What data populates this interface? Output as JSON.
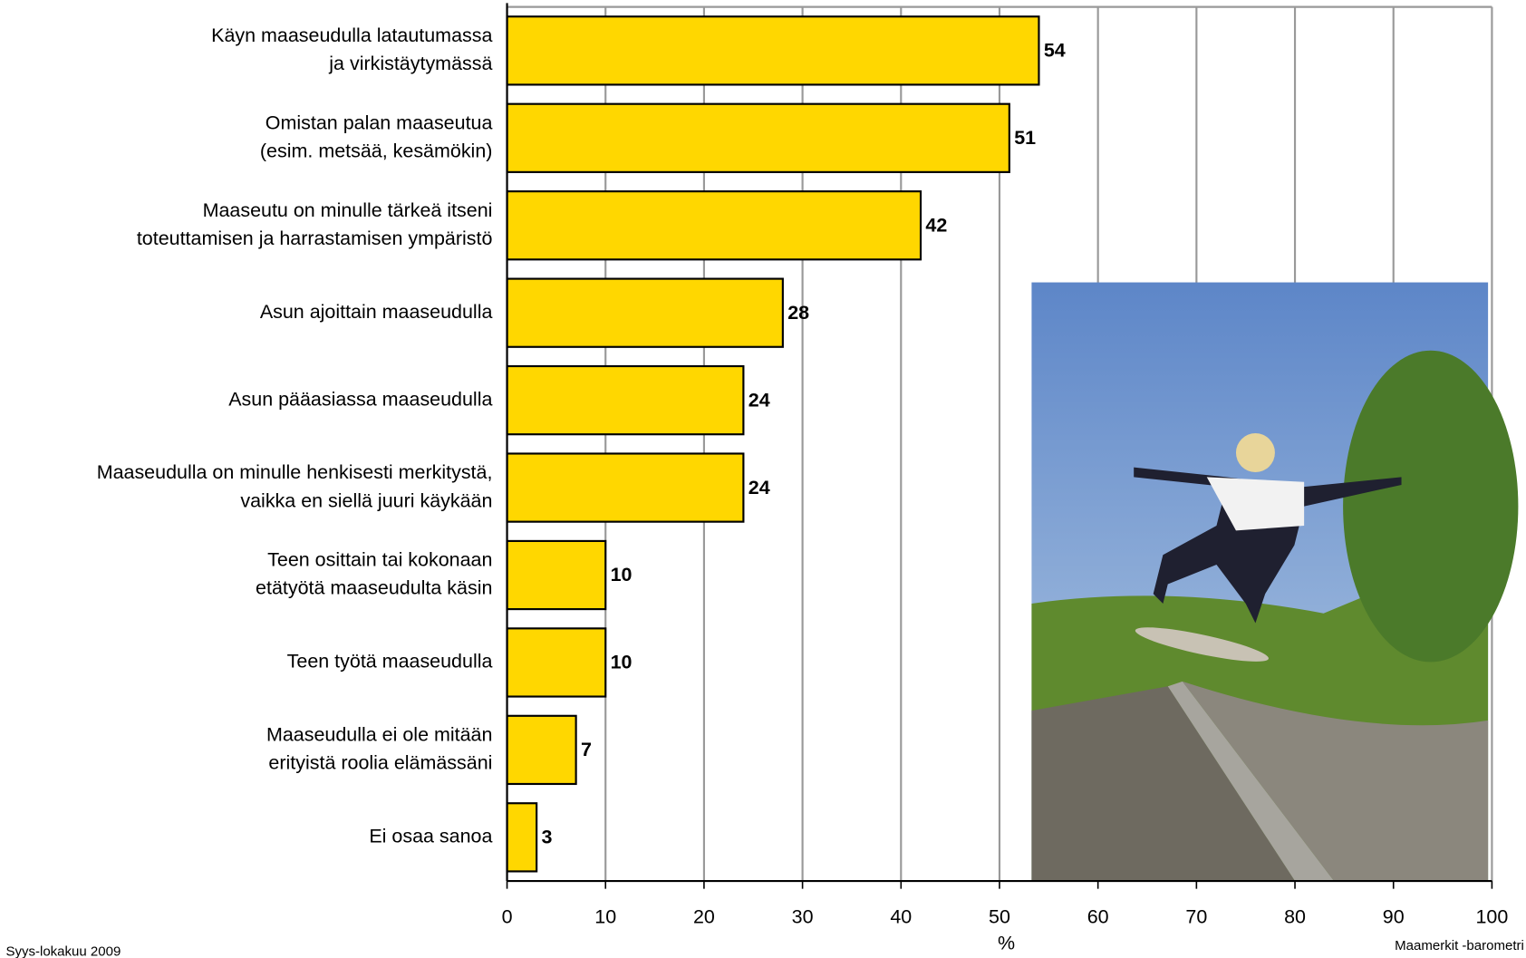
{
  "chart_data": {
    "type": "barh",
    "categories": [
      [
        "Käyn maaseudulla latautumassa",
        "ja virkistäytymässä"
      ],
      [
        "Omistan palan maaseutua",
        "(esim. metsää, kesämökin)"
      ],
      [
        "Maaseutu on minulle tärkeä itseni",
        "toteuttamisen ja harrastamisen ympäristö"
      ],
      [
        "Asun ajoittain maaseudulla"
      ],
      [
        "Asun pääasiassa maaseudulla"
      ],
      [
        "Maaseudulla on minulle henkisesti merkitystä,",
        "vaikka en siellä juuri käykään"
      ],
      [
        "Teen osittain tai kokonaan",
        "etätyötä maaseudulta käsin"
      ],
      [
        "Teen työtä maaseudulla"
      ],
      [
        "Maaseudulla ei ole mitään",
        "erityistä roolia elämässäni"
      ],
      [
        "Ei osaa sanoa"
      ]
    ],
    "values": [
      54,
      51,
      42,
      28,
      24,
      24,
      10,
      10,
      7,
      3
    ],
    "color": "#ffd700",
    "xlim": [
      0,
      100
    ],
    "xticks": [
      0,
      10,
      20,
      30,
      40,
      50,
      60,
      70,
      80,
      90,
      100
    ],
    "xlabel": "%",
    "grid": true,
    "footnote_left": "Syys-lokakuu 2009",
    "footnote_right": "Maamerkit -barometri"
  }
}
